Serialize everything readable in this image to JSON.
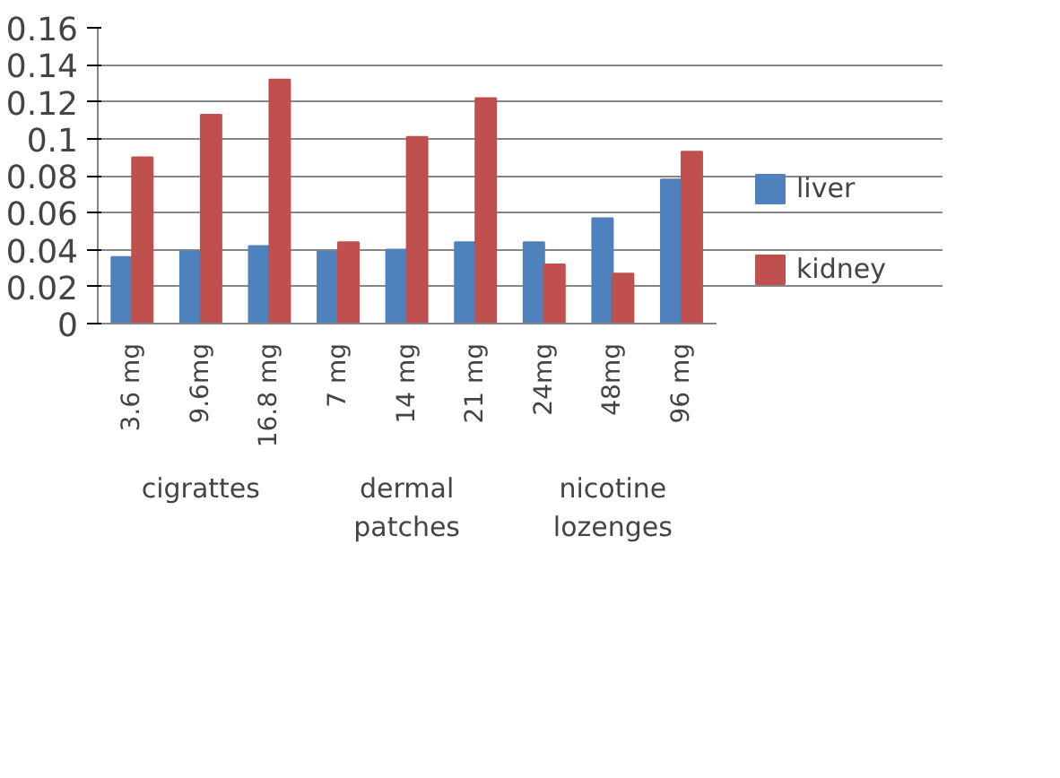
{
  "chart_data": {
    "type": "bar",
    "categories": [
      "3.6 mg",
      "9.6mg",
      "16.8 mg",
      "7 mg",
      "14 mg",
      "21 mg",
      "24mg",
      "48mg",
      "96 mg"
    ],
    "series": [
      {
        "name": "liver",
        "color": "#4f81bd",
        "values": [
          0.036,
          0.039,
          0.042,
          0.039,
          0.04,
          0.044,
          0.044,
          0.057,
          0.078
        ]
      },
      {
        "name": "kidney",
        "color": "#c0504d",
        "values": [
          0.09,
          0.113,
          0.132,
          0.044,
          0.101,
          0.122,
          0.032,
          0.027,
          0.093
        ]
      }
    ],
    "annotations": [
      "cigrattes",
      "dermal patches",
      "nicotine lozenges"
    ],
    "ylim": [
      0,
      0.16
    ],
    "yticks": [
      0,
      0.02,
      0.04,
      0.06,
      0.08,
      0.1,
      0.12,
      0.14,
      0.16
    ],
    "grid": "y",
    "legend": "right"
  }
}
